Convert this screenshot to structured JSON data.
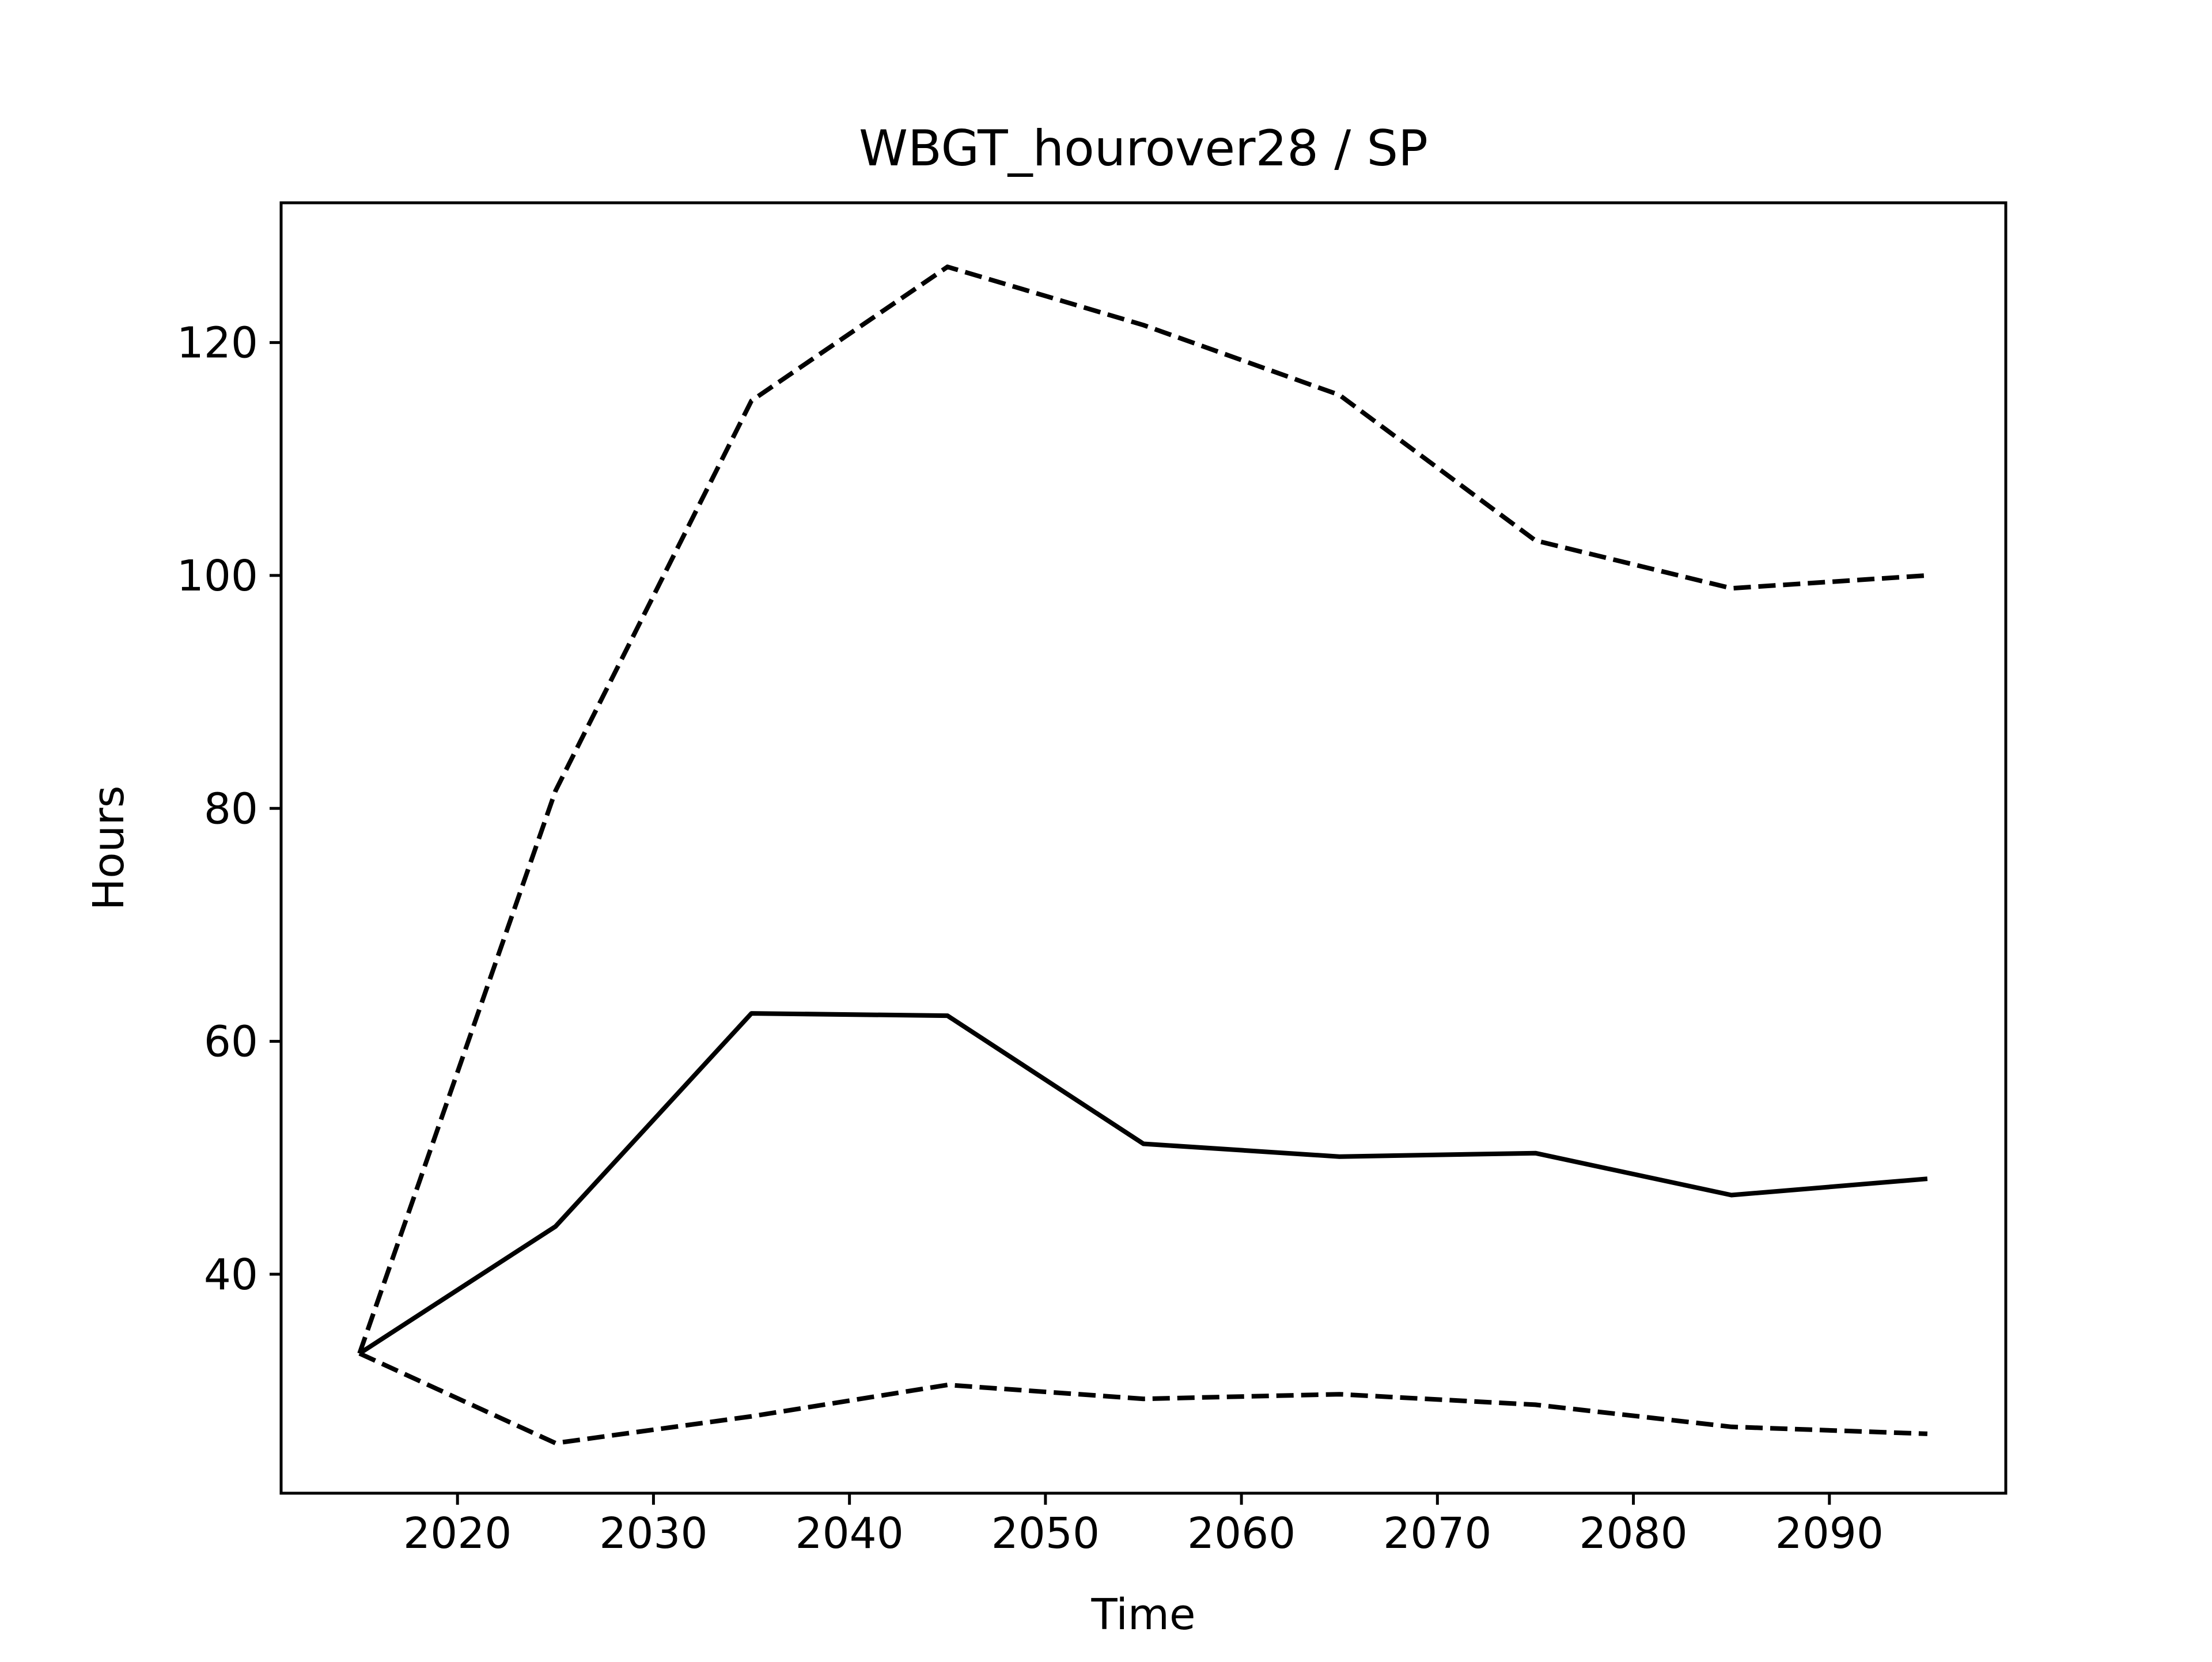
{
  "chart_data": {
    "type": "line",
    "title": "WBGT_hourover28 / SP",
    "xlabel": "Time",
    "ylabel": "Hours",
    "x": [
      2015,
      2025,
      2035,
      2045,
      2055,
      2065,
      2075,
      2085,
      2095
    ],
    "xlim": [
      2011,
      2099
    ],
    "ylim": [
      21.2,
      132
    ],
    "xticks": [
      2020,
      2030,
      2040,
      2050,
      2060,
      2070,
      2080,
      2090
    ],
    "yticks": [
      40,
      60,
      80,
      100,
      120
    ],
    "grid": false,
    "series": [
      {
        "style": "solid",
        "color": "#000000",
        "values": [
          33.2,
          44.1,
          62.4,
          62.2,
          51.2,
          50.1,
          50.4,
          46.8,
          48.2
        ]
      },
      {
        "style": "dashed",
        "color": "#000000",
        "values": [
          33.2,
          81.5,
          115.0,
          126.5,
          121.5,
          115.5,
          103.0,
          98.9,
          100.0
        ]
      },
      {
        "style": "dashed",
        "color": "#000000",
        "values": [
          33.2,
          25.5,
          27.8,
          30.5,
          29.3,
          29.7,
          28.8,
          26.9,
          26.3
        ]
      }
    ]
  }
}
